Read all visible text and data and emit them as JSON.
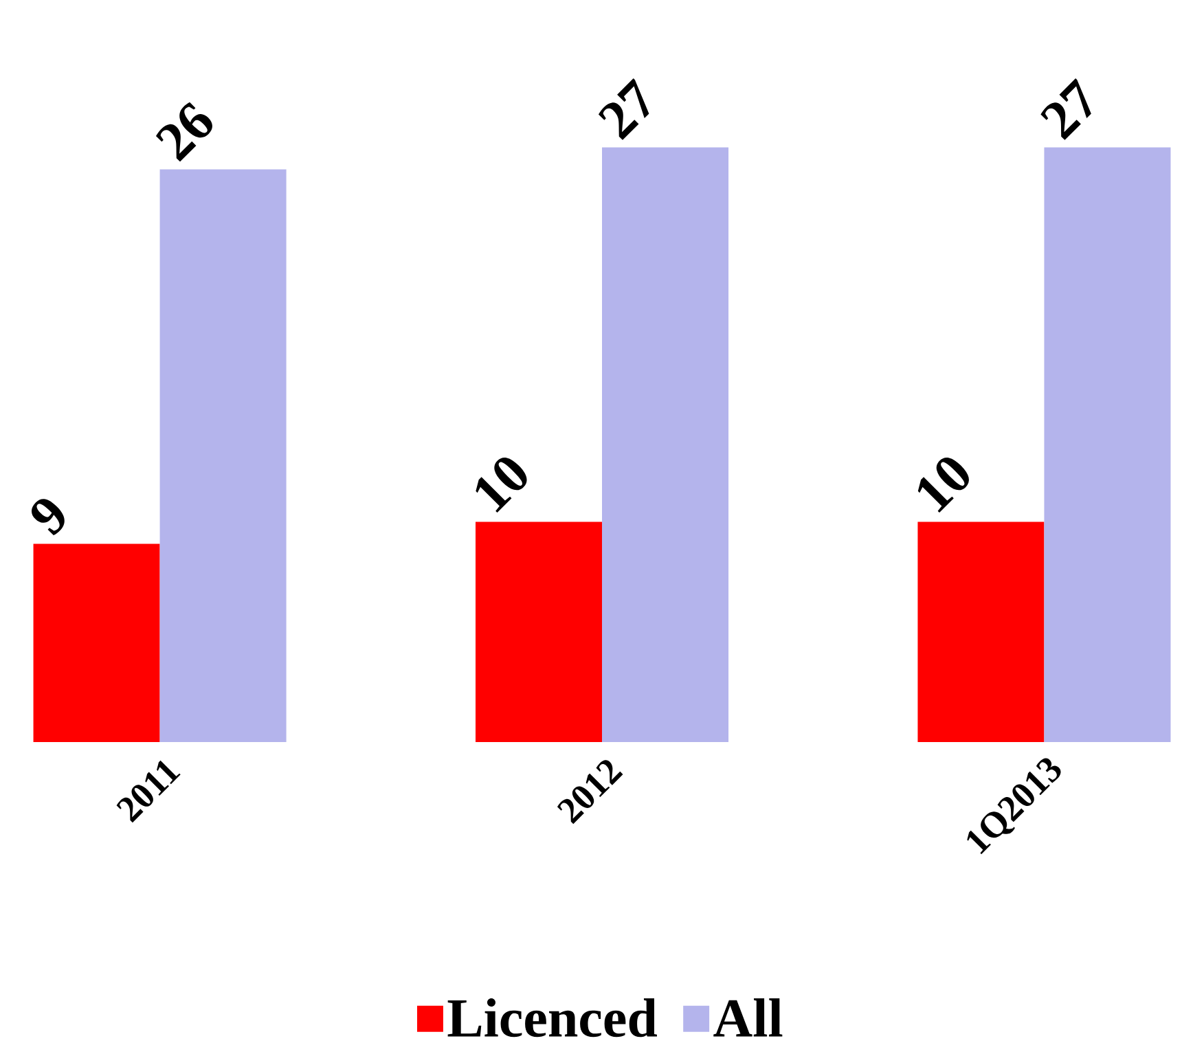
{
  "chart_data": {
    "type": "bar",
    "categories": [
      "2011",
      "2012",
      "1Q2013"
    ],
    "series": [
      {
        "name": "Licenced",
        "color": "#ff0000",
        "values": [
          9,
          10,
          10
        ]
      },
      {
        "name": "All",
        "color": "#b4b4ec",
        "values": [
          26,
          27,
          27
        ]
      }
    ],
    "data_labels": true,
    "legend": "bottom"
  }
}
